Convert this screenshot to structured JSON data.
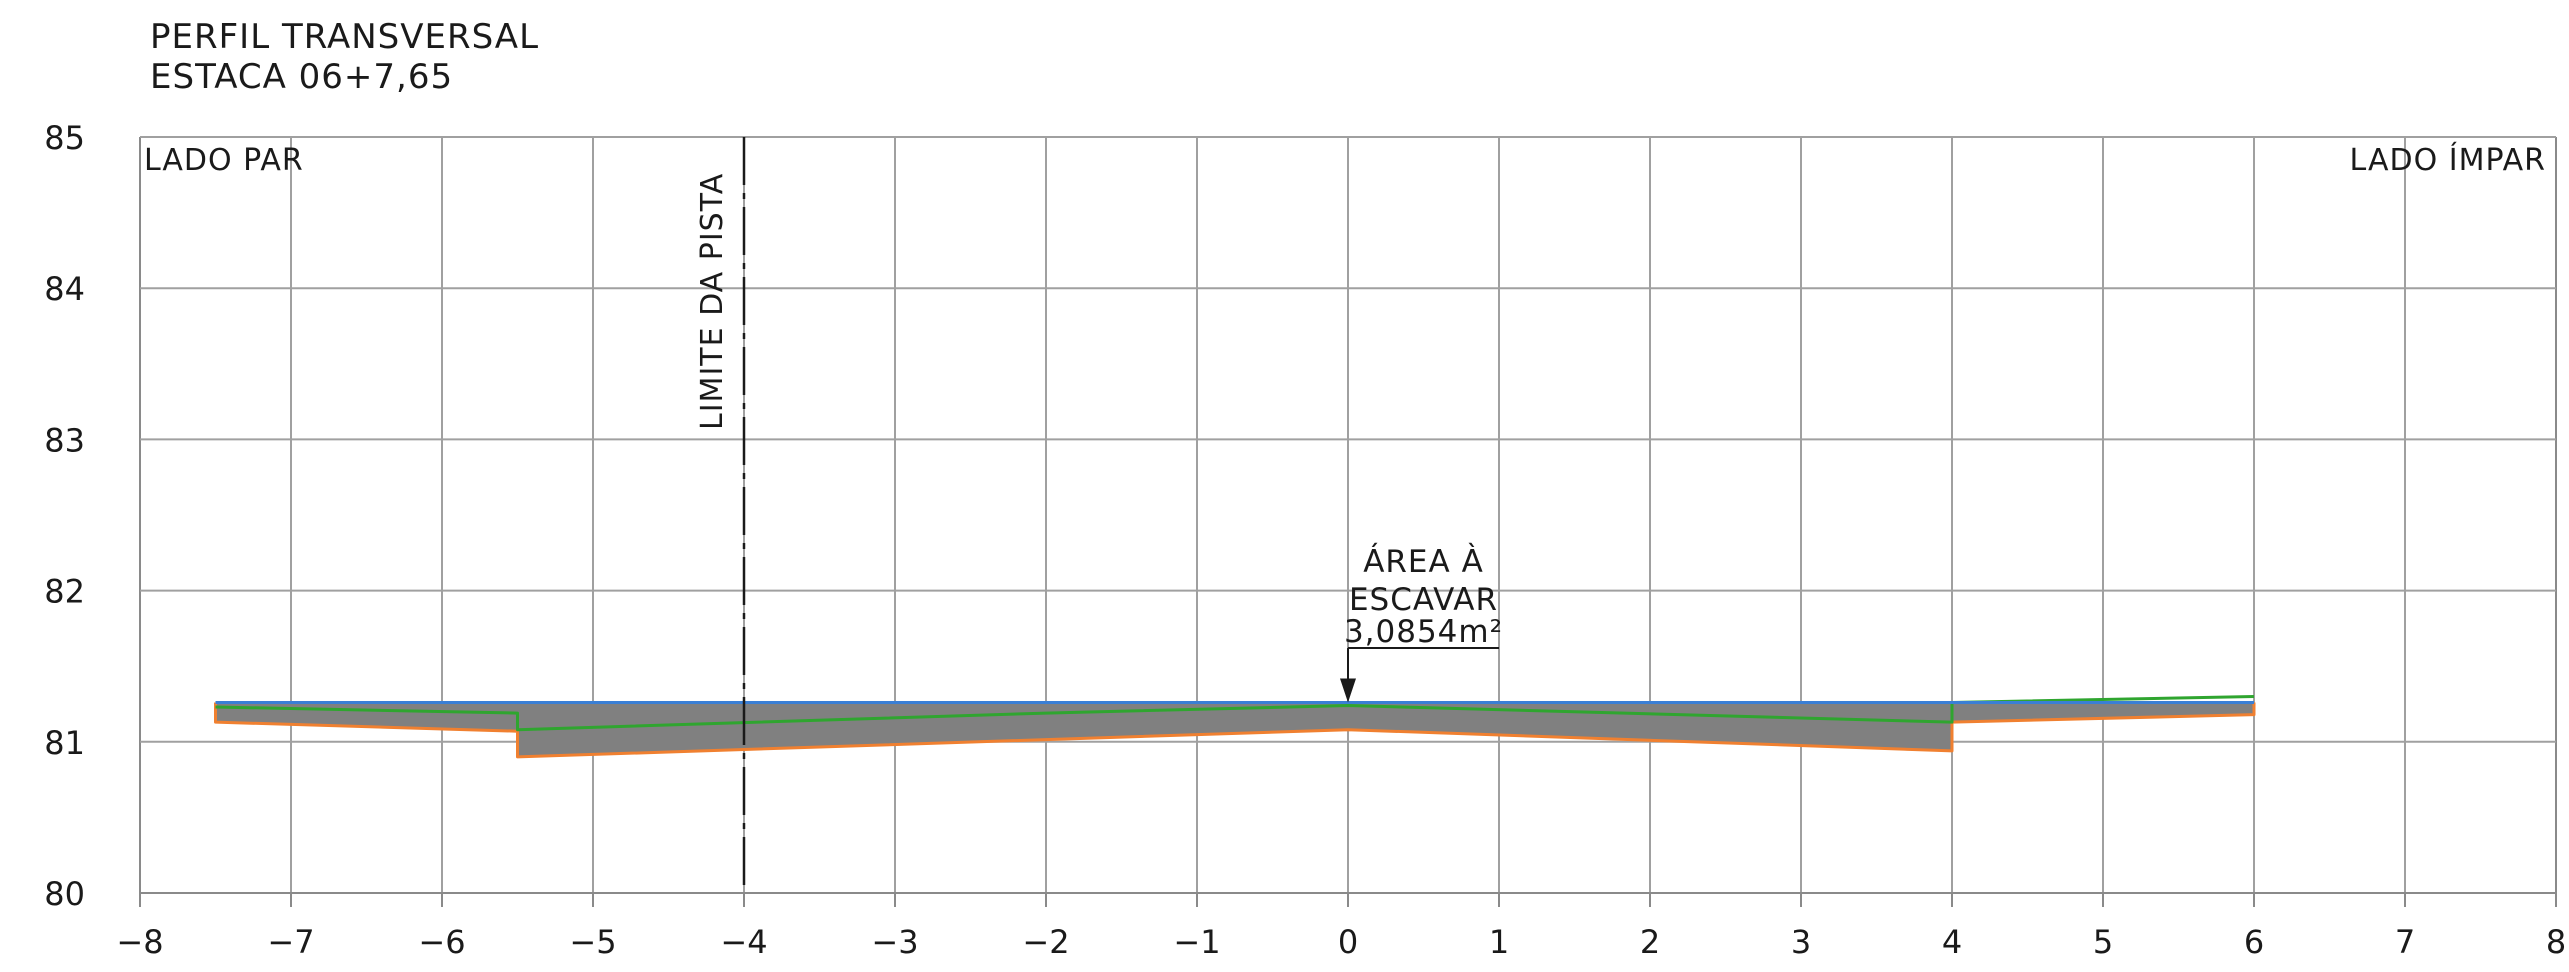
{
  "chart_data": {
    "type": "area",
    "title": "PERFIL TRANSVERSAL",
    "subtitle": "ESTACA 06+7,65",
    "xlim": [
      -8,
      8
    ],
    "ylim": [
      80,
      85
    ],
    "x_ticks": [
      "−8",
      "−7",
      "−6",
      "−5",
      "−4",
      "−3",
      "−2",
      "−1",
      "0",
      "1",
      "2",
      "3",
      "4",
      "5",
      "6",
      "7",
      "8"
    ],
    "y_ticks": [
      "80",
      "81",
      "82",
      "83",
      "84",
      "85"
    ],
    "grid": true,
    "side_labels": {
      "left": "LADO  PAR",
      "right": "LADO  ÍMPAR"
    },
    "limit_line": {
      "x": -4,
      "label": "LIMITE  DA  PISTA"
    },
    "annotation": {
      "lines": [
        "ÁREA  À",
        "ESCAVAR",
        "3,0854m²"
      ],
      "x": 0,
      "y": 81.26
    },
    "series": [
      {
        "color": "#3a7fd5",
        "x": [
          -7.5,
          6
        ],
        "y": [
          81.26,
          81.26
        ]
      },
      {
        "color": "#2fa52f",
        "x": [
          -7.5,
          -5.5,
          -5.5,
          -2,
          0,
          4,
          4,
          6
        ],
        "y": [
          81.23,
          81.19,
          81.08,
          81.19,
          81.24,
          81.13,
          81.26,
          81.3
        ]
      },
      {
        "color": "#f08030",
        "x": [
          -7.5,
          -7.5,
          -5.5,
          -5.5,
          0,
          4,
          4,
          6,
          6
        ],
        "y": [
          81.26,
          81.13,
          81.07,
          80.9,
          81.08,
          80.94,
          81.13,
          81.18,
          81.26
        ]
      }
    ],
    "fill_color": "#808080"
  }
}
